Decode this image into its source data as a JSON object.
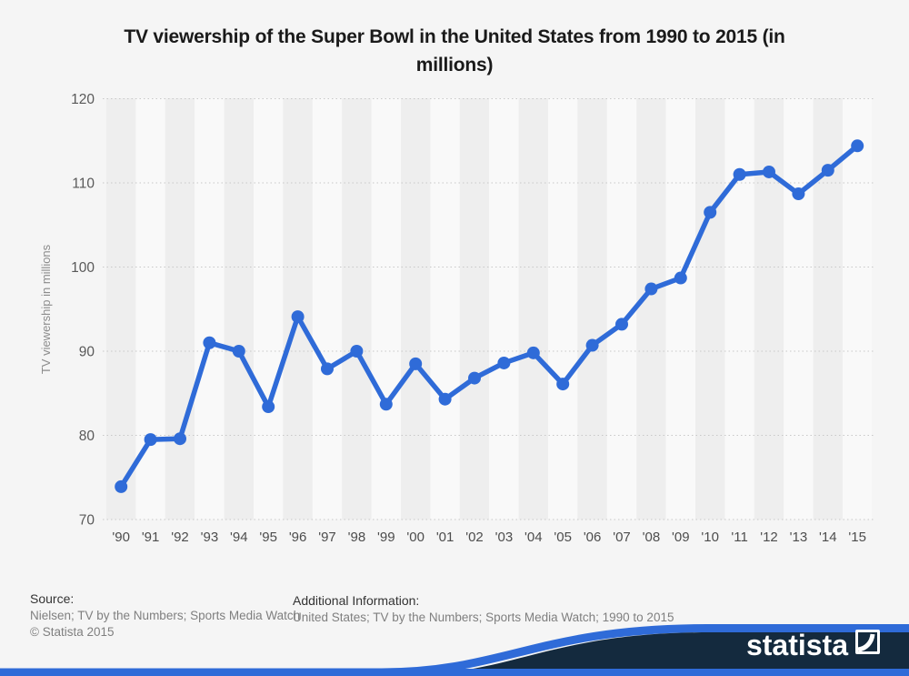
{
  "header": {
    "title_lines": [
      "TV viewership of the Super Bowl in the United States from 1990 to 2015 (in",
      "millions)"
    ]
  },
  "chart_data": {
    "type": "line",
    "title": "TV viewership of the Super Bowl in the United States from 1990 to 2015 (in millions)",
    "categories": [
      "'90",
      "'91",
      "'92",
      "'93",
      "'94",
      "'95",
      "'96",
      "'97",
      "'98",
      "'99",
      "'00",
      "'01",
      "'02",
      "'03",
      "'04",
      "'05",
      "'06",
      "'07",
      "'08",
      "'09",
      "'10",
      "'11",
      "'12",
      "'13",
      "'14",
      "'15"
    ],
    "values": [
      73.9,
      79.5,
      79.6,
      91.0,
      90.0,
      83.4,
      94.1,
      87.9,
      90.0,
      83.7,
      88.5,
      84.3,
      86.8,
      88.6,
      89.8,
      86.1,
      90.7,
      93.2,
      97.4,
      98.7,
      106.5,
      111.0,
      111.3,
      108.7,
      111.5,
      114.4
    ],
    "xlabel": "",
    "ylabel": "TV viewership in millions",
    "ylim": [
      70,
      120
    ],
    "yticks": [
      70,
      80,
      90,
      100,
      110,
      120
    ],
    "grid": "horizontal-dotted",
    "legend": "none",
    "line_color": "#2f6bd8",
    "marker": "circle",
    "stripe_dark": "#eeeeee",
    "stripe_light": "#f9f9f9",
    "gridline_color": "#c8c8c8",
    "tick_color": "#595959",
    "xlabel_color": "#4d4d4d",
    "ylabel_color": "#8c8c8c"
  },
  "footer": {
    "source_label": "Source:",
    "source_line1": "Nielsen; TV by the Numbers; Sports Media Watch",
    "source_line2": "© Statista 2015",
    "additional_label": "Additional Information:",
    "additional_text": "United States; TV by the Numbers; Sports Media Watch; 1990 to 2015"
  },
  "branding": {
    "logo_text": "statista",
    "navy": "#142a3e",
    "blue": "#2f6bd8"
  }
}
